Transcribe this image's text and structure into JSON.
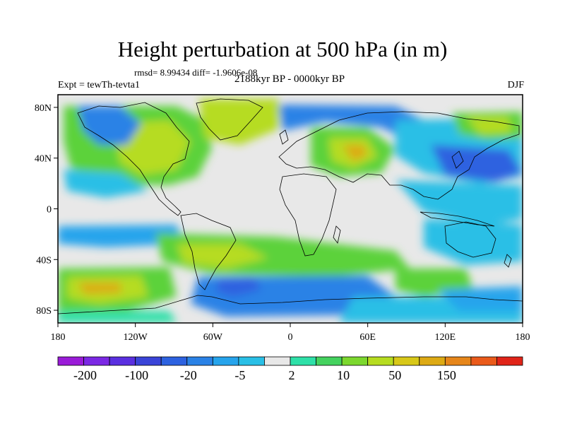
{
  "title": "Height perturbation at 500 hPa (in m)",
  "stats_line": "rmsd= 8.99434 diff= -1.9606e-08",
  "subtitle": "2188kyr BP - 0000kyr BP",
  "experiment": "Expt = tewTh-tevta1",
  "season": "DJF",
  "map": {
    "projection": "cylindrical equidistant",
    "lon_ticks": [
      "180",
      "120W",
      "60W",
      "0",
      "60E",
      "120E",
      "180"
    ],
    "lat_ticks": [
      "80N",
      "40N",
      "0",
      "40S",
      "80S"
    ]
  },
  "colorbar": {
    "colors": [
      "#9a1bd8",
      "#7b28e4",
      "#5a2fe0",
      "#3a44d8",
      "#2d62e0",
      "#2a82e6",
      "#26a4ec",
      "#29bfe6",
      "#e8e8e8",
      "#2ee0a8",
      "#44d25e",
      "#7cd82e",
      "#b6dc20",
      "#d8c818",
      "#ddaa14",
      "#e6861a",
      "#ea5a1a",
      "#e02418"
    ],
    "labels": [
      "-200",
      "-100",
      "-20",
      "-5",
      "2",
      "10",
      "50",
      "150"
    ]
  },
  "colors": {
    "background": "#ffffff",
    "coastline": "#000000",
    "zero_band": "#e8e8e8"
  }
}
